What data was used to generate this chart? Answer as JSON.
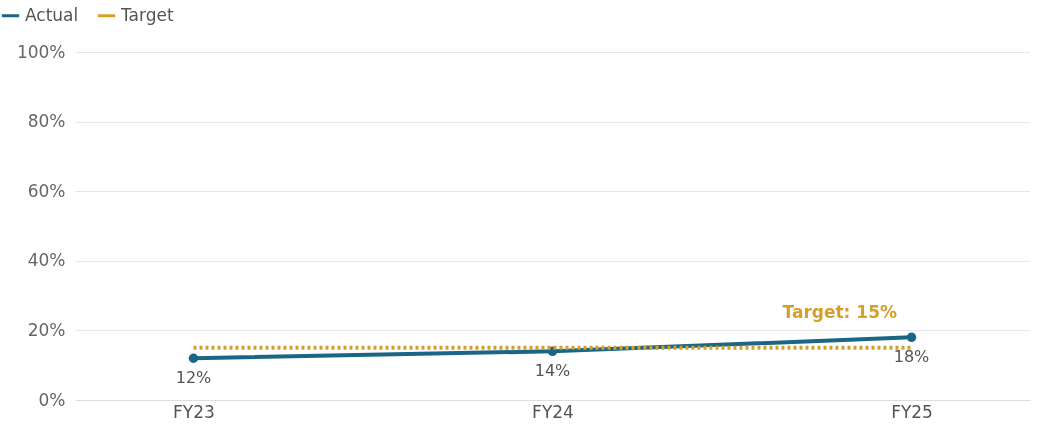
{
  "chart_data": {
    "type": "line",
    "categories": [
      "FY23",
      "FY24",
      "FY25"
    ],
    "series": [
      {
        "name": "Actual",
        "color": "#1b6585",
        "values": [
          12,
          14,
          18
        ],
        "marker": "circle",
        "line_style": "solid",
        "value_labels": [
          "12%",
          "14%",
          "18%"
        ]
      },
      {
        "name": "Target",
        "color": "#d4a02a",
        "values": [
          15,
          15,
          15
        ],
        "marker": "none",
        "line_style": "dotted"
      }
    ],
    "ylim": [
      0,
      100
    ],
    "yticks": [
      {
        "value": 0,
        "label": "0%"
      },
      {
        "value": 20,
        "label": "20%"
      },
      {
        "value": 40,
        "label": "40%"
      },
      {
        "value": 60,
        "label": "60%"
      },
      {
        "value": 80,
        "label": "80%"
      },
      {
        "value": 100,
        "label": "100%"
      }
    ],
    "annotations": [
      "Target: 15%"
    ],
    "grid": "y",
    "legend": "top left"
  }
}
